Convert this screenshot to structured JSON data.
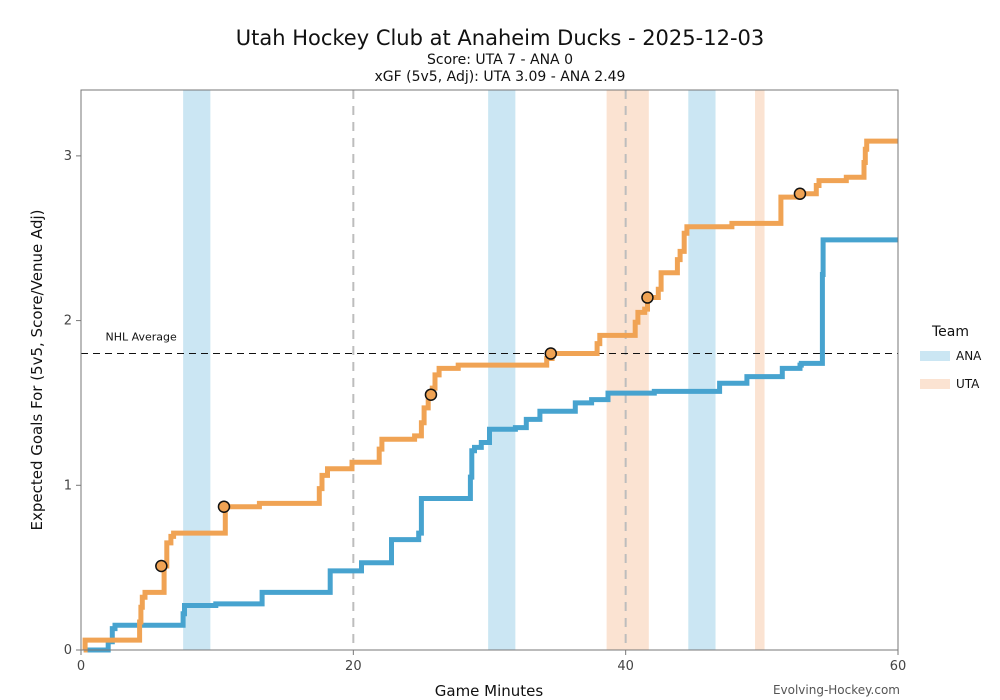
{
  "chart_data": {
    "type": "line",
    "title": "Utah Hockey Club at Anaheim Ducks - 2025-12-03",
    "subtitle_score": "Score: UTA 7 - ANA 0",
    "subtitle_xg": "xGF (5v5, Adj): UTA 3.09 - ANA 2.49",
    "xlabel": "Game Minutes",
    "ylabel": "Expected Goals For (5v5, Score/Venue Adj)",
    "xlim": [
      0,
      60
    ],
    "ylim": [
      0,
      3.4
    ],
    "x_ticks": [
      0,
      20,
      40,
      60
    ],
    "y_ticks": [
      0,
      1,
      2,
      3
    ],
    "period_lines": [
      20,
      40
    ],
    "reference_line": {
      "label": "NHL Average",
      "y": 1.8
    },
    "legend": {
      "title": "Team",
      "position": "right",
      "entries": [
        "ANA",
        "UTA"
      ]
    },
    "penalty_spans": [
      {
        "team": "ANA",
        "start": 7.5,
        "end": 9.5
      },
      {
        "team": "ANA",
        "start": 29.9,
        "end": 31.9
      },
      {
        "team": "ANA",
        "start": 44.6,
        "end": 46.6
      },
      {
        "team": "UTA",
        "start": 38.6,
        "end": 41.7
      },
      {
        "team": "UTA",
        "start": 49.5,
        "end": 50.2
      }
    ],
    "series": [
      {
        "name": "ANA",
        "color": "#47a3cf",
        "points": [
          [
            0.2,
            0
          ],
          [
            2.0,
            0.05
          ],
          [
            2.3,
            0.13
          ],
          [
            2.5,
            0.15
          ],
          [
            7.4,
            0.15
          ],
          [
            7.5,
            0.22
          ],
          [
            7.6,
            0.27
          ],
          [
            9.8,
            0.27
          ],
          [
            9.9,
            0.28
          ],
          [
            13.2,
            0.28
          ],
          [
            13.3,
            0.35
          ],
          [
            18.2,
            0.35
          ],
          [
            18.3,
            0.48
          ],
          [
            20.5,
            0.48
          ],
          [
            20.6,
            0.53
          ],
          [
            22.7,
            0.53
          ],
          [
            22.8,
            0.67
          ],
          [
            24.7,
            0.67
          ],
          [
            24.8,
            0.71
          ],
          [
            24.9,
            0.71
          ],
          [
            25.0,
            0.92
          ],
          [
            28.5,
            0.92
          ],
          [
            28.6,
            1.05
          ],
          [
            28.7,
            1.21
          ],
          [
            28.9,
            1.23
          ],
          [
            29.3,
            1.23
          ],
          [
            29.4,
            1.26
          ],
          [
            29.9,
            1.26
          ],
          [
            30.0,
            1.34
          ],
          [
            31.8,
            1.34
          ],
          [
            31.9,
            1.35
          ],
          [
            32.6,
            1.35
          ],
          [
            32.7,
            1.4
          ],
          [
            33.6,
            1.4
          ],
          [
            33.7,
            1.45
          ],
          [
            36.2,
            1.45
          ],
          [
            36.3,
            1.5
          ],
          [
            37.4,
            1.5
          ],
          [
            37.5,
            1.52
          ],
          [
            38.6,
            1.52
          ],
          [
            38.7,
            1.56
          ],
          [
            42.0,
            1.56
          ],
          [
            42.1,
            1.57
          ],
          [
            46.8,
            1.57
          ],
          [
            46.9,
            1.62
          ],
          [
            48.8,
            1.62
          ],
          [
            48.9,
            1.66
          ],
          [
            51.4,
            1.66
          ],
          [
            51.5,
            1.71
          ],
          [
            52.7,
            1.71
          ],
          [
            52.8,
            1.73
          ],
          [
            52.9,
            1.74
          ],
          [
            54.4,
            1.74
          ],
          [
            54.45,
            2.28
          ],
          [
            54.5,
            2.49
          ],
          [
            60,
            2.49
          ]
        ]
      },
      {
        "name": "UTA",
        "color": "#f0a354",
        "points": [
          [
            0.2,
            0
          ],
          [
            0.3,
            0.06
          ],
          [
            4.2,
            0.06
          ],
          [
            4.3,
            0.17
          ],
          [
            4.4,
            0.26
          ],
          [
            4.5,
            0.32
          ],
          [
            4.7,
            0.35
          ],
          [
            6.0,
            0.35
          ],
          [
            6.1,
            0.51
          ],
          [
            6.3,
            0.65
          ],
          [
            6.6,
            0.69
          ],
          [
            6.8,
            0.71
          ],
          [
            10.5,
            0.71
          ],
          [
            10.6,
            0.87
          ],
          [
            13.0,
            0.87
          ],
          [
            13.1,
            0.89
          ],
          [
            17.4,
            0.89
          ],
          [
            17.5,
            0.98
          ],
          [
            17.7,
            1.06
          ],
          [
            18.1,
            1.1
          ],
          [
            19.8,
            1.1
          ],
          [
            19.9,
            1.14
          ],
          [
            21.7,
            1.14
          ],
          [
            21.9,
            1.22
          ],
          [
            22.1,
            1.28
          ],
          [
            24.4,
            1.28
          ],
          [
            24.5,
            1.3
          ],
          [
            24.8,
            1.3
          ],
          [
            25.0,
            1.38
          ],
          [
            25.2,
            1.47
          ],
          [
            25.5,
            1.55
          ],
          [
            25.8,
            1.59
          ],
          [
            26.0,
            1.67
          ],
          [
            26.3,
            1.71
          ],
          [
            27.6,
            1.71
          ],
          [
            27.7,
            1.73
          ],
          [
            34.0,
            1.73
          ],
          [
            34.2,
            1.77
          ],
          [
            34.6,
            1.8
          ],
          [
            37.7,
            1.8
          ],
          [
            37.9,
            1.86
          ],
          [
            38.1,
            1.91
          ],
          [
            40.5,
            1.91
          ],
          [
            40.7,
            1.99
          ],
          [
            40.9,
            2.05
          ],
          [
            41.4,
            2.07
          ],
          [
            41.6,
            2.14
          ],
          [
            42.3,
            2.14
          ],
          [
            42.4,
            2.19
          ],
          [
            42.6,
            2.29
          ],
          [
            43.6,
            2.29
          ],
          [
            43.8,
            2.37
          ],
          [
            44.0,
            2.42
          ],
          [
            44.3,
            2.53
          ],
          [
            44.5,
            2.57
          ],
          [
            47.6,
            2.57
          ],
          [
            47.8,
            2.59
          ],
          [
            51.3,
            2.59
          ],
          [
            51.4,
            2.75
          ],
          [
            52.6,
            2.75
          ],
          [
            52.8,
            2.77
          ],
          [
            53.8,
            2.77
          ],
          [
            54.0,
            2.82
          ],
          [
            54.2,
            2.85
          ],
          [
            56.1,
            2.85
          ],
          [
            56.2,
            2.87
          ],
          [
            57.4,
            2.87
          ],
          [
            57.5,
            2.96
          ],
          [
            57.6,
            3.04
          ],
          [
            57.7,
            3.09
          ],
          [
            60,
            3.09
          ]
        ]
      }
    ],
    "goals": [
      {
        "team": "UTA",
        "x": 5.9,
        "y": 0.51
      },
      {
        "team": "UTA",
        "x": 10.5,
        "y": 0.87
      },
      {
        "team": "UTA",
        "x": 25.7,
        "y": 1.55
      },
      {
        "team": "UTA",
        "x": 34.5,
        "y": 1.8
      },
      {
        "team": "UTA",
        "x": 41.6,
        "y": 2.14
      },
      {
        "team": "UTA",
        "x": 52.8,
        "y": 2.77
      }
    ]
  },
  "colors": {
    "ana_line": "#47a3cf",
    "uta_line": "#f0a354",
    "ana_band": "#cbe6f3",
    "uta_band": "#fbe3d2",
    "goal_fill": "#f0a354",
    "goal_stroke": "#111111"
  },
  "footer": {
    "credit": "Evolving-Hockey.com"
  }
}
